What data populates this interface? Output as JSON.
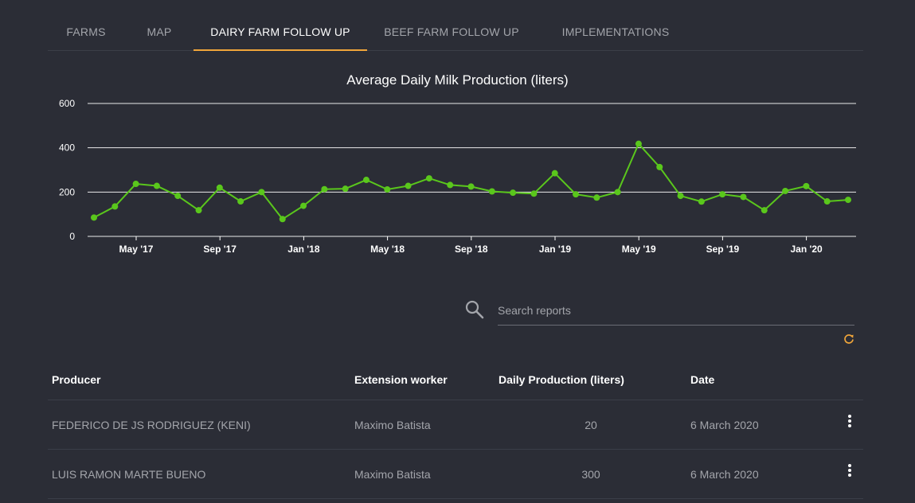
{
  "tabs": [
    {
      "label": "FARMS",
      "active": false
    },
    {
      "label": "MAP",
      "active": false
    },
    {
      "label": "DAIRY FARM FOLLOW UP",
      "active": true
    },
    {
      "label": "BEEF FARM FOLLOW UP",
      "active": false
    },
    {
      "label": "IMPLEMENTATIONS",
      "active": false
    }
  ],
  "colors": {
    "accent": "#f0a53a",
    "line": "#5ac71c",
    "background": "#2b2d36"
  },
  "chart_data": {
    "type": "line",
    "title": "Average Daily Milk Production (liters)",
    "xlabel": "",
    "ylabel": "",
    "ylim": [
      0,
      600
    ],
    "yticks": [
      "0",
      "200",
      "400",
      "600"
    ],
    "xticks": [
      "May '17",
      "Sep '17",
      "Jan '18",
      "May '18",
      "Sep '18",
      "Jan '19",
      "May '19",
      "Sep '19",
      "Jan '20"
    ],
    "grid": true,
    "series": [
      {
        "values": [
          85,
          135,
          237,
          228,
          183,
          118,
          220,
          158,
          200,
          78,
          138,
          213,
          215,
          255,
          212,
          228,
          262,
          232,
          225,
          203,
          197,
          193,
          285,
          190,
          175,
          200,
          418,
          313,
          183,
          157,
          190,
          178,
          118,
          205,
          227,
          158,
          165
        ]
      }
    ]
  },
  "search": {
    "placeholder": "Search reports",
    "value": "",
    "icon": "search-icon"
  },
  "refresh_icon": "refresh-icon",
  "table": {
    "headers": [
      "Producer",
      "Extension worker",
      "Daily Production (liters)",
      "Date"
    ],
    "rows": [
      {
        "producer": "FEDERICO DE JS RODRIGUEZ (KENI)",
        "worker": "Maximo Batista",
        "production": "20",
        "date": "6 March 2020"
      },
      {
        "producer": "LUIS RAMON MARTE BUENO",
        "worker": "Maximo Batista",
        "production": "300",
        "date": "6 March 2020"
      }
    ]
  }
}
